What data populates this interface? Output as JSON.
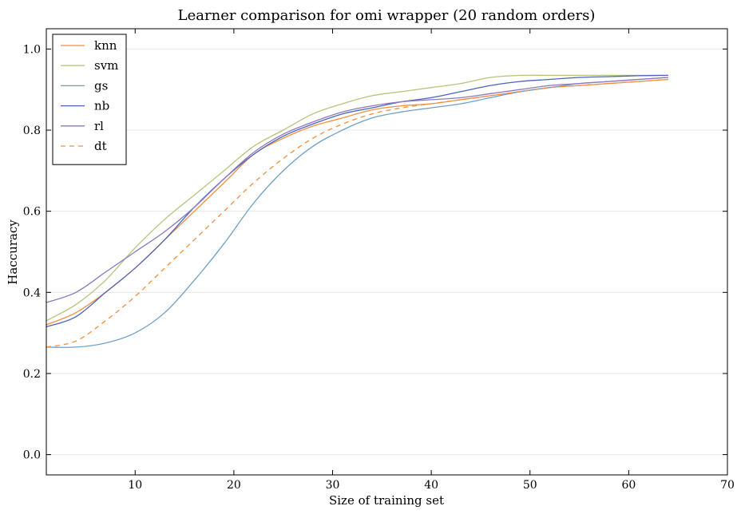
{
  "chart_data": {
    "type": "line",
    "title": "Learner comparison for omi wrapper (20 random orders)",
    "xlabel": "Size of training set",
    "ylabel": "Haccuracy",
    "xlim": [
      1,
      70
    ],
    "ylim": [
      -0.05,
      1.05
    ],
    "xticks": [
      10,
      20,
      30,
      40,
      50,
      60,
      70
    ],
    "yticks": [
      0.0,
      0.2,
      0.4,
      0.6,
      0.8,
      1.0
    ],
    "xtick_labels": [
      "10",
      "20",
      "30",
      "40",
      "50",
      "60",
      "70"
    ],
    "ytick_labels": [
      "0.0",
      "0.2",
      "0.4",
      "0.6",
      "0.8",
      "1.0"
    ],
    "grid": "horizontal",
    "legend_position": "top-left",
    "x": [
      1,
      4,
      7,
      10,
      13,
      16,
      19,
      22,
      25,
      28,
      31,
      34,
      37,
      40,
      43,
      46,
      49,
      52,
      55,
      58,
      61,
      64
    ],
    "series": [
      {
        "name": "knn",
        "color": "#f28e3c",
        "dash": "solid",
        "values": [
          0.32,
          0.35,
          0.4,
          0.46,
          0.53,
          0.6,
          0.67,
          0.74,
          0.78,
          0.81,
          0.83,
          0.85,
          0.86,
          0.865,
          0.875,
          0.885,
          0.895,
          0.905,
          0.91,
          0.915,
          0.92,
          0.925
        ]
      },
      {
        "name": "svm",
        "color": "#b5c47e",
        "dash": "solid",
        "values": [
          0.33,
          0.37,
          0.43,
          0.51,
          0.58,
          0.64,
          0.7,
          0.76,
          0.8,
          0.84,
          0.865,
          0.885,
          0.895,
          0.905,
          0.915,
          0.93,
          0.935,
          0.935,
          0.935,
          0.935,
          0.935,
          0.935
        ]
      },
      {
        "name": "gs",
        "color": "#6e9fc9",
        "dash": "solid",
        "values": [
          0.265,
          0.265,
          0.275,
          0.3,
          0.35,
          0.43,
          0.52,
          0.62,
          0.7,
          0.76,
          0.8,
          0.83,
          0.845,
          0.855,
          0.865,
          0.88,
          0.895,
          0.905,
          0.915,
          0.92,
          0.925,
          0.93
        ]
      },
      {
        "name": "nb",
        "color": "#4a64bf",
        "dash": "solid",
        "values": [
          0.315,
          0.34,
          0.4,
          0.46,
          0.53,
          0.61,
          0.68,
          0.74,
          0.785,
          0.815,
          0.84,
          0.855,
          0.87,
          0.88,
          0.895,
          0.91,
          0.92,
          0.925,
          0.93,
          0.932,
          0.934,
          0.935
        ]
      },
      {
        "name": "rl",
        "color": "#8a78c0",
        "dash": "solid",
        "values": [
          0.375,
          0.4,
          0.45,
          0.5,
          0.55,
          0.61,
          0.68,
          0.745,
          0.79,
          0.82,
          0.845,
          0.86,
          0.87,
          0.875,
          0.88,
          0.89,
          0.9,
          0.91,
          0.915,
          0.92,
          0.925,
          0.93
        ]
      },
      {
        "name": "dt",
        "color": "#f28e3c",
        "dash": "dashed",
        "values": [
          0.265,
          0.28,
          0.33,
          0.39,
          0.46,
          0.53,
          0.6,
          0.67,
          0.73,
          0.78,
          0.815,
          0.84,
          0.855,
          0.865,
          0.875,
          0.885,
          0.895,
          0.905,
          0.91,
          0.915,
          0.92,
          0.925
        ]
      }
    ]
  }
}
